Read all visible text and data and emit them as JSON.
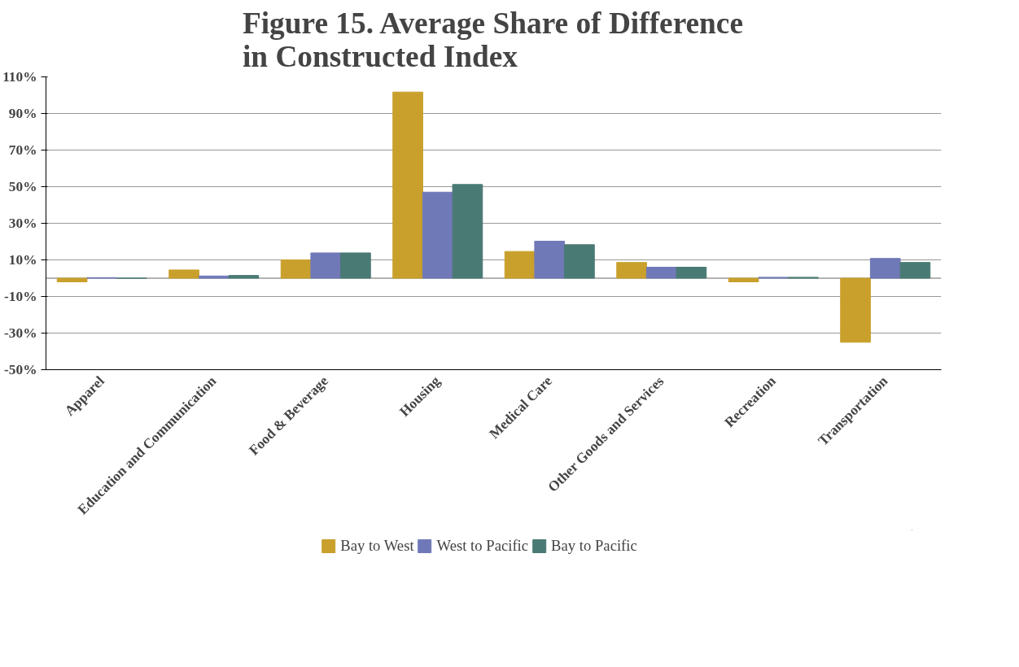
{
  "chart_data": {
    "type": "bar",
    "title": "Figure 15. Average Share of Difference in Constructed Index",
    "categories": [
      "Apparel",
      "Education and Communication",
      "Food & Beverage",
      "Housing",
      "Medical Care",
      "Other Goods and Services",
      "Recreation",
      "Transportation"
    ],
    "series": [
      {
        "name": "Bay to West",
        "color": "#c9a02c",
        "values": [
          -2,
          4.5,
          10,
          101.7,
          14.6,
          8.6,
          -2,
          -35
        ]
      },
      {
        "name": "West to Pacific",
        "color": "#7079b8",
        "values": [
          0.3,
          1.2,
          13.8,
          47,
          20.2,
          6,
          0.5,
          10.8
        ]
      },
      {
        "name": "Bay to Pacific",
        "color": "#4a7a74",
        "values": [
          0,
          1.5,
          13.8,
          51.2,
          18.3,
          6,
          0.5,
          8.6
        ]
      }
    ],
    "ylim": [
      -50,
      110
    ],
    "yticks": [
      {
        "value": 110,
        "label": "110%"
      },
      {
        "value": 90,
        "label": "90%"
      },
      {
        "value": 70,
        "label": "70%"
      },
      {
        "value": 50,
        "label": "50%"
      },
      {
        "value": 30,
        "label": "30%"
      },
      {
        "value": 10,
        "label": "10%"
      },
      {
        "value": -10,
        "label": "-10%"
      },
      {
        "value": -30,
        "label": "-30%"
      },
      {
        "value": -50,
        "label": "-50%"
      }
    ],
    "grid": "y",
    "legend": "bottom"
  }
}
